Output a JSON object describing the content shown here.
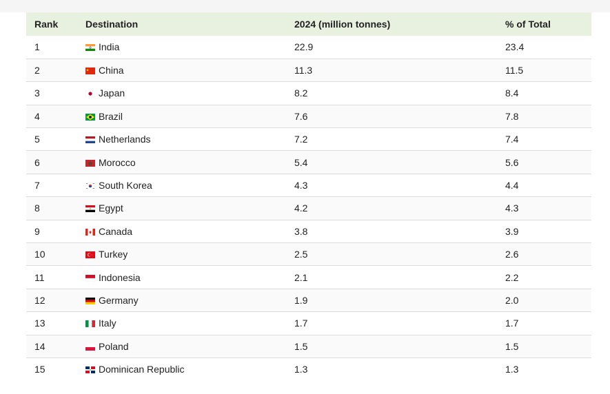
{
  "headers": {
    "rank": "Rank",
    "destination": "Destination",
    "value": "2024 (million tonnes)",
    "pct": "% of Total"
  },
  "rows": [
    {
      "rank": "1",
      "destination": "India",
      "value": "22.9",
      "pct": "23.4",
      "flag": "india-flag-icon"
    },
    {
      "rank": "2",
      "destination": "China",
      "value": "11.3",
      "pct": "11.5",
      "flag": "china-flag-icon"
    },
    {
      "rank": "3",
      "destination": "Japan",
      "value": "8.2",
      "pct": "8.4",
      "flag": "japan-flag-icon"
    },
    {
      "rank": "4",
      "destination": "Brazil",
      "value": "7.6",
      "pct": "7.8",
      "flag": "brazil-flag-icon"
    },
    {
      "rank": "5",
      "destination": "Netherlands",
      "value": "7.2",
      "pct": "7.4",
      "flag": "netherlands-flag-icon"
    },
    {
      "rank": "6",
      "destination": "Morocco",
      "value": "5.4",
      "pct": "5.6",
      "flag": "morocco-flag-icon"
    },
    {
      "rank": "7",
      "destination": "South Korea",
      "value": "4.3",
      "pct": "4.4",
      "flag": "south-korea-flag-icon"
    },
    {
      "rank": "8",
      "destination": "Egypt",
      "value": "4.2",
      "pct": "4.3",
      "flag": "egypt-flag-icon"
    },
    {
      "rank": "9",
      "destination": "Canada",
      "value": "3.8",
      "pct": "3.9",
      "flag": "canada-flag-icon"
    },
    {
      "rank": "10",
      "destination": "Turkey",
      "value": "2.5",
      "pct": "2.6",
      "flag": "turkey-flag-icon"
    },
    {
      "rank": "11",
      "destination": "Indonesia",
      "value": "2.1",
      "pct": "2.2",
      "flag": "indonesia-flag-icon"
    },
    {
      "rank": "12",
      "destination": "Germany",
      "value": "1.9",
      "pct": "2.0",
      "flag": "germany-flag-icon"
    },
    {
      "rank": "13",
      "destination": "Italy",
      "value": "1.7",
      "pct": "1.7",
      "flag": "italy-flag-icon"
    },
    {
      "rank": "14",
      "destination": "Poland",
      "value": "1.5",
      "pct": "1.5",
      "flag": "poland-flag-icon"
    },
    {
      "rank": "15",
      "destination": "Dominican Republic",
      "value": "1.3",
      "pct": "1.3",
      "flag": "dominican-republic-flag-icon"
    }
  ],
  "colors": {
    "header_bg": "#e8f0df",
    "row_border": "#dcdcdc"
  }
}
